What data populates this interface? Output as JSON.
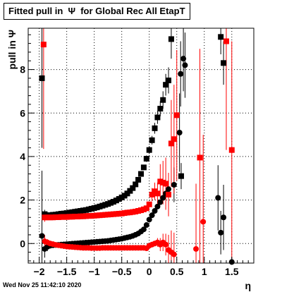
{
  "chart_data": {
    "type": "scatter",
    "title": "Fitted pull in  Ψ  for Global Rec All EtapT",
    "xlabel": "η",
    "ylabel": "pull in  Ψ",
    "xlim": [
      -2.2,
      1.9
    ],
    "ylim": [
      -0.9,
      9.9
    ],
    "x_ticks": [
      -2,
      -1.5,
      -1,
      -0.5,
      0,
      0.5,
      1,
      1.5
    ],
    "x_tick_labels": [
      "−2",
      "−1.5",
      "−1",
      "−0.5",
      "0",
      "0.5",
      "1",
      "1.5"
    ],
    "y_ticks": [
      0,
      2,
      4,
      6,
      8
    ],
    "y_tick_labels": [
      "0",
      "2",
      "4",
      "6",
      "8"
    ],
    "grid": true,
    "series": [
      {
        "color": "#000000",
        "marker": "square",
        "points": [
          [
            -1.95,
            7.6,
            3.2
          ],
          [
            -1.9,
            1.35,
            0.2
          ],
          [
            -1.85,
            1.3,
            0.1
          ],
          [
            -1.8,
            1.3,
            0.1
          ],
          [
            -1.75,
            1.32,
            0.06
          ],
          [
            -1.7,
            1.33,
            0.05
          ],
          [
            -1.65,
            1.35,
            0.05
          ],
          [
            -1.6,
            1.37,
            0.04
          ],
          [
            -1.55,
            1.38,
            0.04
          ],
          [
            -1.5,
            1.4,
            0.04
          ],
          [
            -1.45,
            1.42,
            0.04
          ],
          [
            -1.4,
            1.44,
            0.04
          ],
          [
            -1.35,
            1.46,
            0.04
          ],
          [
            -1.3,
            1.48,
            0.04
          ],
          [
            -1.25,
            1.5,
            0.04
          ],
          [
            -1.2,
            1.52,
            0.04
          ],
          [
            -1.15,
            1.54,
            0.04
          ],
          [
            -1.1,
            1.57,
            0.04
          ],
          [
            -1.05,
            1.6,
            0.04
          ],
          [
            -1.0,
            1.63,
            0.04
          ],
          [
            -0.95,
            1.66,
            0.04
          ],
          [
            -0.9,
            1.7,
            0.04
          ],
          [
            -0.85,
            1.74,
            0.04
          ],
          [
            -0.8,
            1.78,
            0.04
          ],
          [
            -0.75,
            1.82,
            0.05
          ],
          [
            -0.7,
            1.87,
            0.05
          ],
          [
            -0.65,
            1.92,
            0.05
          ],
          [
            -0.6,
            1.98,
            0.05
          ],
          [
            -0.55,
            2.05,
            0.05
          ],
          [
            -0.5,
            2.12,
            0.05
          ],
          [
            -0.45,
            2.2,
            0.06
          ],
          [
            -0.4,
            2.3,
            0.06
          ],
          [
            -0.35,
            2.42,
            0.06
          ],
          [
            -0.3,
            2.55,
            0.07
          ],
          [
            -0.25,
            2.72,
            0.08
          ],
          [
            -0.2,
            2.93,
            0.08
          ],
          [
            -0.15,
            3.2,
            0.1
          ],
          [
            -0.1,
            3.5,
            0.12
          ],
          [
            -0.05,
            3.9,
            0.15
          ],
          [
            0.0,
            4.3,
            0.18
          ],
          [
            0.05,
            4.75,
            0.2
          ],
          [
            0.1,
            5.3,
            0.25
          ],
          [
            0.15,
            5.8,
            0.3
          ],
          [
            0.2,
            6.2,
            0.35
          ],
          [
            0.25,
            6.6,
            0.4
          ],
          [
            0.3,
            7.3,
            0.5
          ],
          [
            0.35,
            7.5,
            0.6
          ],
          [
            0.4,
            9.4,
            0.9
          ],
          [
            0.58,
            3.1,
            0.6
          ],
          [
            1.3,
            9.5,
            0.8
          ],
          [
            1.35,
            8.3,
            1.0
          ]
        ]
      },
      {
        "color": "#000000",
        "marker": "circle",
        "points": [
          [
            -1.95,
            0.35,
            3.0
          ],
          [
            -1.9,
            -0.25,
            0.4
          ],
          [
            -1.85,
            -0.15,
            0.2
          ],
          [
            -1.8,
            -0.1,
            0.1
          ],
          [
            -1.75,
            -0.08,
            0.07
          ],
          [
            -1.7,
            -0.07,
            0.06
          ],
          [
            -1.65,
            -0.06,
            0.05
          ],
          [
            -1.6,
            -0.05,
            0.05
          ],
          [
            -1.55,
            -0.04,
            0.04
          ],
          [
            -1.5,
            -0.03,
            0.04
          ],
          [
            -1.45,
            -0.02,
            0.04
          ],
          [
            -1.4,
            -0.01,
            0.04
          ],
          [
            -1.35,
            0.0,
            0.04
          ],
          [
            -1.3,
            0.01,
            0.04
          ],
          [
            -1.25,
            0.02,
            0.04
          ],
          [
            -1.2,
            0.03,
            0.04
          ],
          [
            -1.15,
            0.04,
            0.04
          ],
          [
            -1.1,
            0.05,
            0.04
          ],
          [
            -1.05,
            0.06,
            0.04
          ],
          [
            -1.0,
            0.07,
            0.04
          ],
          [
            -0.95,
            0.08,
            0.04
          ],
          [
            -0.9,
            0.09,
            0.04
          ],
          [
            -0.85,
            0.1,
            0.04
          ],
          [
            -0.8,
            0.11,
            0.04
          ],
          [
            -0.75,
            0.12,
            0.04
          ],
          [
            -0.7,
            0.14,
            0.04
          ],
          [
            -0.65,
            0.16,
            0.04
          ],
          [
            -0.6,
            0.18,
            0.04
          ],
          [
            -0.55,
            0.2,
            0.04
          ],
          [
            -0.5,
            0.22,
            0.04
          ],
          [
            -0.45,
            0.25,
            0.05
          ],
          [
            -0.4,
            0.28,
            0.05
          ],
          [
            -0.35,
            0.31,
            0.05
          ],
          [
            -0.3,
            0.35,
            0.05
          ],
          [
            -0.25,
            0.4,
            0.05
          ],
          [
            -0.2,
            0.46,
            0.06
          ],
          [
            -0.15,
            0.55,
            0.06
          ],
          [
            -0.1,
            0.65,
            0.07
          ],
          [
            -0.05,
            0.85,
            0.07
          ],
          [
            0.0,
            1.1,
            0.08
          ],
          [
            0.05,
            1.3,
            0.08
          ],
          [
            0.1,
            1.5,
            0.08
          ],
          [
            0.15,
            1.7,
            0.08
          ],
          [
            0.2,
            1.9,
            0.08
          ],
          [
            0.25,
            2.1,
            0.1
          ],
          [
            0.3,
            2.3,
            0.15
          ],
          [
            0.35,
            2.5,
            0.4
          ],
          [
            0.45,
            2.7,
            0.8
          ],
          [
            0.55,
            5.1,
            1.8
          ],
          [
            0.57,
            7.8,
            1.5
          ],
          [
            0.62,
            8.5,
            1.5
          ],
          [
            0.65,
            8.2,
            1.5
          ],
          [
            1.25,
            2.1,
            1.5
          ],
          [
            1.3,
            0.5,
            1.0
          ],
          [
            1.35,
            1.2,
            1.5
          ],
          [
            1.5,
            -0.85,
            0.2
          ]
        ]
      },
      {
        "color": "#ff0000",
        "marker": "square",
        "points": [
          [
            -1.92,
            9.15,
            4.8
          ],
          [
            -1.9,
            1.2,
            0.2
          ],
          [
            -1.85,
            1.2,
            0.1
          ],
          [
            -1.8,
            1.2,
            0.08
          ],
          [
            -1.75,
            1.2,
            0.06
          ],
          [
            -1.7,
            1.21,
            0.05
          ],
          [
            -1.65,
            1.21,
            0.05
          ],
          [
            -1.6,
            1.22,
            0.04
          ],
          [
            -1.55,
            1.22,
            0.04
          ],
          [
            -1.5,
            1.22,
            0.04
          ],
          [
            -1.45,
            1.23,
            0.04
          ],
          [
            -1.4,
            1.23,
            0.04
          ],
          [
            -1.35,
            1.24,
            0.04
          ],
          [
            -1.3,
            1.24,
            0.04
          ],
          [
            -1.25,
            1.25,
            0.04
          ],
          [
            -1.2,
            1.25,
            0.04
          ],
          [
            -1.15,
            1.26,
            0.04
          ],
          [
            -1.1,
            1.27,
            0.04
          ],
          [
            -1.05,
            1.27,
            0.04
          ],
          [
            -1.0,
            1.28,
            0.04
          ],
          [
            -0.95,
            1.29,
            0.04
          ],
          [
            -0.9,
            1.3,
            0.04
          ],
          [
            -0.85,
            1.31,
            0.04
          ],
          [
            -0.8,
            1.32,
            0.04
          ],
          [
            -0.75,
            1.33,
            0.04
          ],
          [
            -0.7,
            1.34,
            0.04
          ],
          [
            -0.65,
            1.35,
            0.04
          ],
          [
            -0.6,
            1.36,
            0.04
          ],
          [
            -0.55,
            1.37,
            0.04
          ],
          [
            -0.5,
            1.38,
            0.04
          ],
          [
            -0.45,
            1.4,
            0.04
          ],
          [
            -0.4,
            1.42,
            0.04
          ],
          [
            -0.35,
            1.43,
            0.04
          ],
          [
            -0.3,
            1.45,
            0.05
          ],
          [
            -0.25,
            1.47,
            0.05
          ],
          [
            -0.2,
            1.5,
            0.05
          ],
          [
            -0.15,
            1.53,
            0.05
          ],
          [
            -0.1,
            1.57,
            0.06
          ],
          [
            -0.05,
            1.62,
            0.06
          ],
          [
            0.0,
            1.8,
            0.1
          ],
          [
            0.05,
            2.25,
            0.3
          ],
          [
            0.1,
            2.4,
            0.4
          ],
          [
            0.15,
            2.3,
            0.5
          ],
          [
            0.2,
            2.85,
            0.8
          ],
          [
            0.25,
            2.8,
            1.0
          ],
          [
            0.3,
            2.75,
            1.2
          ],
          [
            0.35,
            2.25,
            1.0
          ],
          [
            0.4,
            4.6,
            2.0
          ],
          [
            0.45,
            4.8,
            2.5
          ],
          [
            0.5,
            5.9,
            3.0
          ],
          [
            0.92,
            3.95,
            5.0
          ],
          [
            1.4,
            9.3,
            5.0
          ],
          [
            1.5,
            4.3,
            5.0
          ]
        ]
      },
      {
        "color": "#ff0000",
        "marker": "circle",
        "points": [
          [
            -1.9,
            0.1,
            0.3
          ],
          [
            -1.85,
            0.05,
            0.15
          ],
          [
            -1.8,
            0.0,
            0.1
          ],
          [
            -1.75,
            -0.03,
            0.07
          ],
          [
            -1.7,
            -0.06,
            0.06
          ],
          [
            -1.65,
            -0.08,
            0.05
          ],
          [
            -1.6,
            -0.1,
            0.05
          ],
          [
            -1.55,
            -0.12,
            0.04
          ],
          [
            -1.5,
            -0.14,
            0.04
          ],
          [
            -1.45,
            -0.15,
            0.04
          ],
          [
            -1.4,
            -0.16,
            0.04
          ],
          [
            -1.35,
            -0.17,
            0.04
          ],
          [
            -1.3,
            -0.18,
            0.04
          ],
          [
            -1.25,
            -0.19,
            0.04
          ],
          [
            -1.2,
            -0.2,
            0.04
          ],
          [
            -1.15,
            -0.2,
            0.04
          ],
          [
            -1.1,
            -0.2,
            0.04
          ],
          [
            -1.05,
            -0.21,
            0.04
          ],
          [
            -1.0,
            -0.21,
            0.04
          ],
          [
            -0.95,
            -0.21,
            0.04
          ],
          [
            -0.9,
            -0.21,
            0.04
          ],
          [
            -0.85,
            -0.2,
            0.04
          ],
          [
            -0.8,
            -0.2,
            0.04
          ],
          [
            -0.75,
            -0.2,
            0.04
          ],
          [
            -0.7,
            -0.2,
            0.04
          ],
          [
            -0.65,
            -0.2,
            0.04
          ],
          [
            -0.6,
            -0.2,
            0.04
          ],
          [
            -0.55,
            -0.2,
            0.04
          ],
          [
            -0.5,
            -0.2,
            0.04
          ],
          [
            -0.45,
            -0.2,
            0.04
          ],
          [
            -0.4,
            -0.2,
            0.04
          ],
          [
            -0.35,
            -0.2,
            0.04
          ],
          [
            -0.3,
            -0.2,
            0.04
          ],
          [
            -0.25,
            -0.2,
            0.04
          ],
          [
            -0.2,
            -0.2,
            0.05
          ],
          [
            -0.15,
            -0.2,
            0.05
          ],
          [
            -0.1,
            -0.2,
            0.05
          ],
          [
            -0.05,
            -0.22,
            0.05
          ],
          [
            0.0,
            -0.1,
            0.06
          ],
          [
            0.05,
            -0.05,
            0.1
          ],
          [
            0.1,
            0.0,
            0.12
          ],
          [
            0.15,
            0.05,
            0.2
          ],
          [
            0.2,
            -0.05,
            0.3
          ],
          [
            0.25,
            0.05,
            0.4
          ],
          [
            0.3,
            -0.05,
            0.5
          ],
          [
            0.35,
            -0.3,
            0.7
          ],
          [
            0.4,
            -0.4,
            1.0
          ],
          [
            0.45,
            -0.5,
            1.0
          ],
          [
            0.85,
            -0.25,
            3.0
          ],
          [
            0.98,
            1.0,
            4.0
          ]
        ]
      }
    ]
  },
  "footer": {
    "timestamp": "Wed Nov 25 11:42:10 2020"
  }
}
